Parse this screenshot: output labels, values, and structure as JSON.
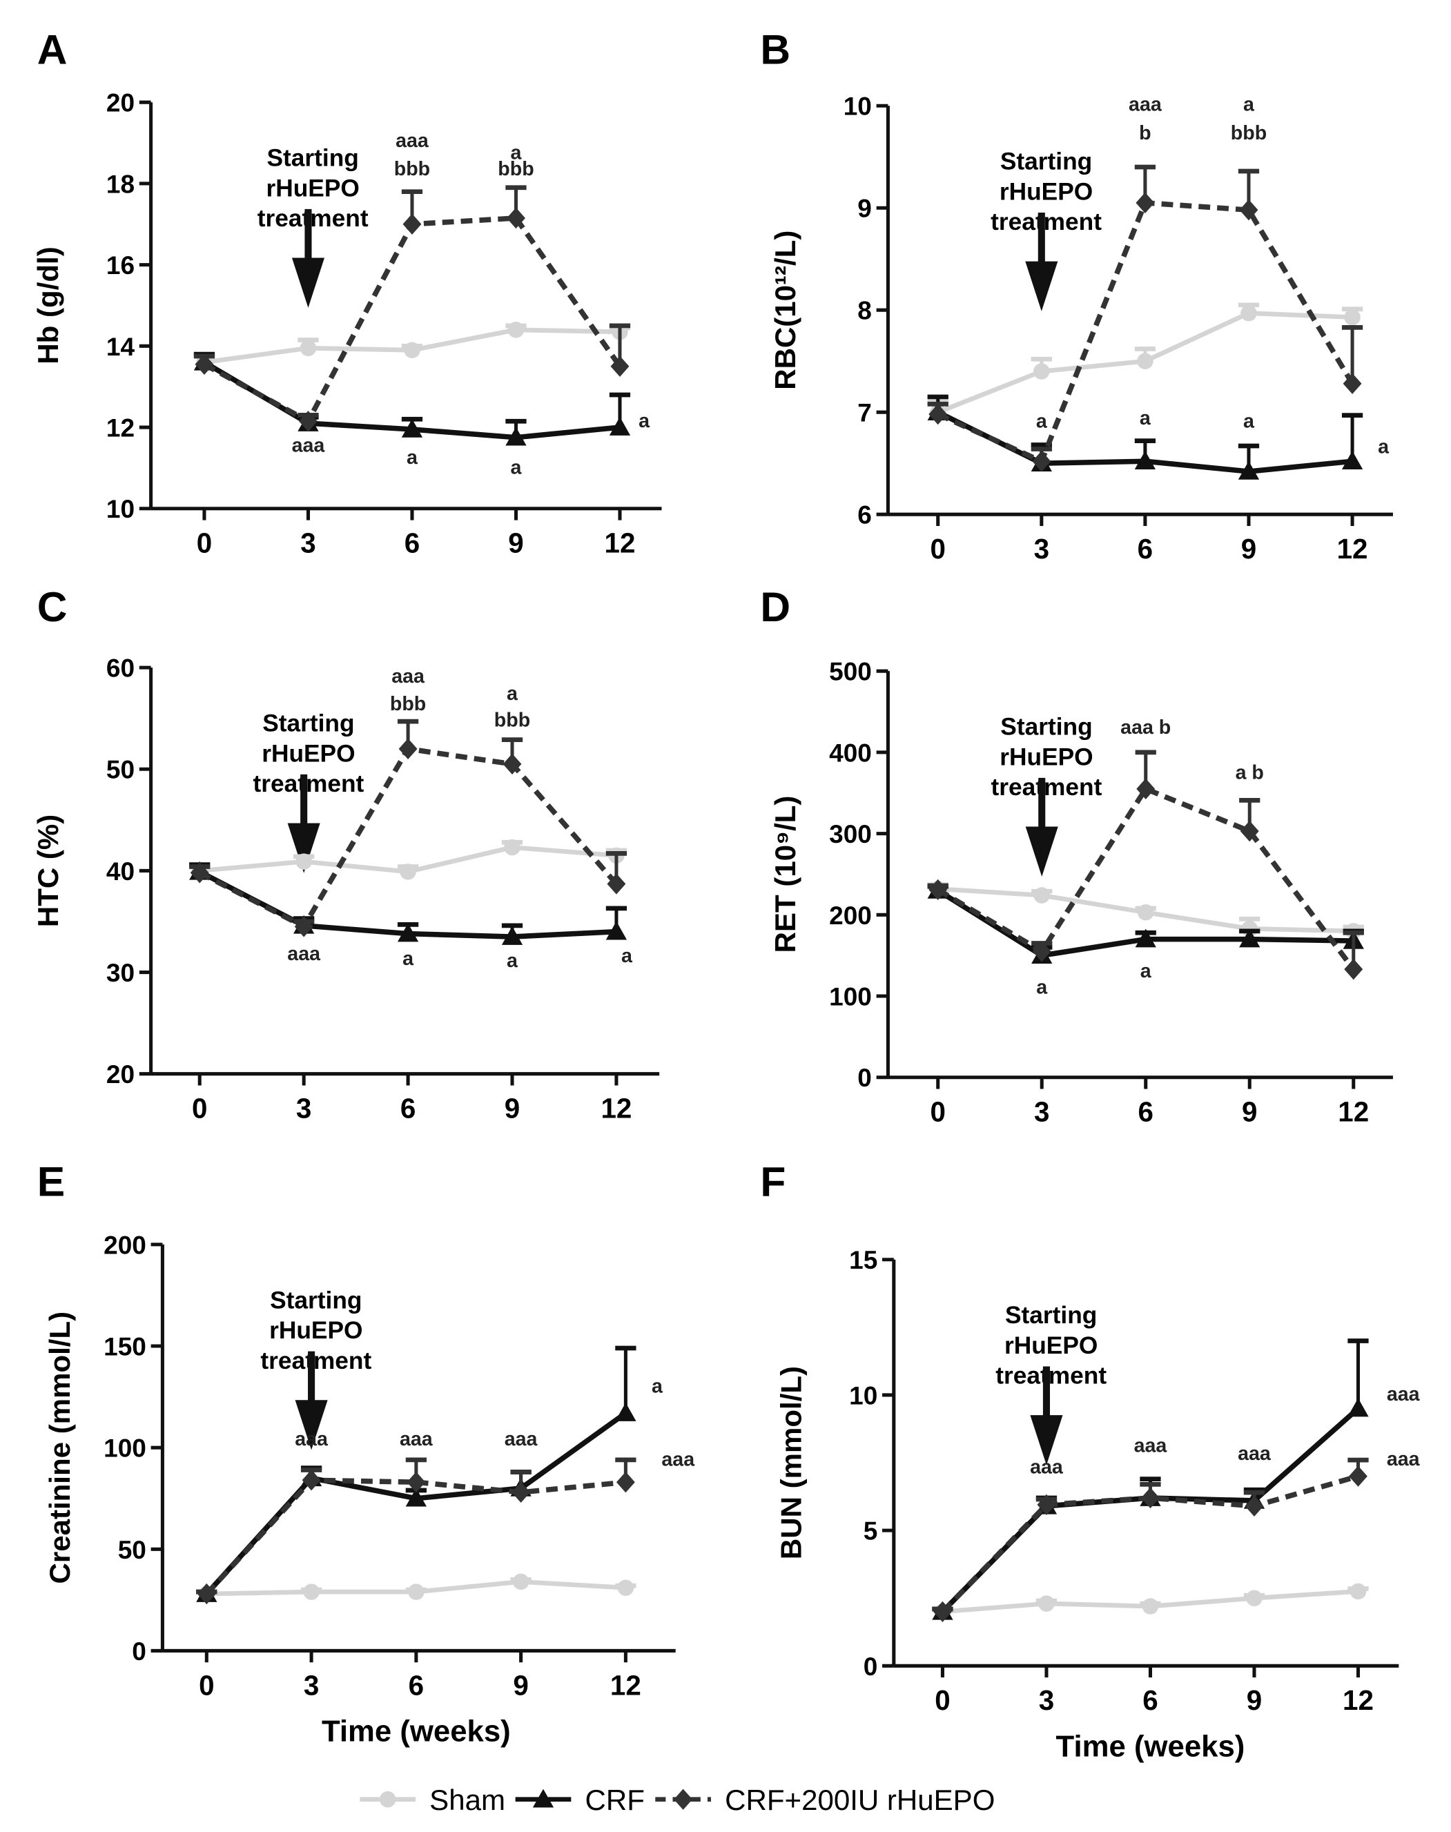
{
  "chart_data": [
    {
      "panel": "A",
      "type": "line",
      "ylabel": "Hb (g/dl)",
      "xlabel": "",
      "ylim": [
        10,
        20
      ],
      "yticks": [
        10,
        12,
        14,
        16,
        18,
        20
      ],
      "x": [
        0,
        3,
        6,
        9,
        12
      ],
      "series": [
        {
          "name": "Sham",
          "values": [
            13.6,
            13.95,
            13.9,
            14.4,
            14.35
          ],
          "err": [
            0.15,
            0.2,
            0.1,
            0.1,
            0.1
          ]
        },
        {
          "name": "CRF",
          "values": [
            13.6,
            12.1,
            11.95,
            11.75,
            12.0
          ],
          "err": [
            0.2,
            0.15,
            0.25,
            0.4,
            0.8
          ]
        },
        {
          "name": "CRF+200IU rHuEPO",
          "values": [
            13.55,
            12.15,
            17.0,
            17.15,
            13.5
          ],
          "err": [
            0.2,
            0.15,
            0.8,
            0.75,
            1.0
          ]
        }
      ],
      "annotation": {
        "lines": [
          "Starting",
          "rHuEPO",
          "treatment"
        ],
        "x": 3
      },
      "significance": [
        {
          "x": 3,
          "y": 11.4,
          "text": "aaa"
        },
        {
          "x": 6,
          "y": 11.1,
          "text": "a"
        },
        {
          "x": 9,
          "y": 10.85,
          "text": "a"
        },
        {
          "x": 12.7,
          "y": 12.0,
          "text": "a"
        },
        {
          "x": 6,
          "y": 18.9,
          "text": "aaa"
        },
        {
          "x": 6,
          "y": 18.2,
          "text": "bbb"
        },
        {
          "x": 9,
          "y": 18.6,
          "text": "a"
        },
        {
          "x": 9,
          "y": 18.2,
          "text": "bbb"
        }
      ]
    },
    {
      "panel": "B",
      "type": "line",
      "ylabel": "RBC(10¹²/L)",
      "xlabel": "",
      "ylim": [
        6,
        10
      ],
      "yticks": [
        6,
        7,
        8,
        9,
        10
      ],
      "x": [
        0,
        3,
        6,
        9,
        12
      ],
      "series": [
        {
          "name": "Sham",
          "values": [
            7.0,
            7.4,
            7.5,
            7.97,
            7.93
          ],
          "err": [
            0.1,
            0.12,
            0.12,
            0.08,
            0.08
          ]
        },
        {
          "name": "CRF",
          "values": [
            7.0,
            6.5,
            6.52,
            6.42,
            6.52
          ],
          "err": [
            0.15,
            0.18,
            0.2,
            0.25,
            0.45
          ]
        },
        {
          "name": "CRF+200IU rHuEPO",
          "values": [
            6.98,
            6.52,
            9.05,
            8.98,
            7.28
          ],
          "err": [
            0.1,
            0.12,
            0.35,
            0.38,
            0.55
          ]
        }
      ],
      "annotation": {
        "lines": [
          "Starting",
          "rHuEPO",
          "treatment"
        ],
        "x": 3
      },
      "significance": [
        {
          "x": 3,
          "y": 6.85,
          "text": "a"
        },
        {
          "x": 6,
          "y": 6.88,
          "text": "a"
        },
        {
          "x": 9,
          "y": 6.85,
          "text": "a"
        },
        {
          "x": 12.9,
          "y": 6.6,
          "text": "a"
        },
        {
          "x": 6,
          "y": 9.95,
          "text": "aaa"
        },
        {
          "x": 6,
          "y": 9.67,
          "text": "b"
        },
        {
          "x": 9,
          "y": 9.95,
          "text": "a"
        },
        {
          "x": 9,
          "y": 9.67,
          "text": "bbb"
        }
      ]
    },
    {
      "panel": "C",
      "type": "line",
      "ylabel": "HTC (%)",
      "xlabel": "",
      "ylim": [
        20,
        60
      ],
      "yticks": [
        20,
        30,
        40,
        50,
        60
      ],
      "x": [
        0,
        3,
        6,
        9,
        12
      ],
      "series": [
        {
          "name": "Sham",
          "values": [
            40.0,
            40.9,
            39.9,
            42.3,
            41.5
          ],
          "err": [
            0.5,
            0.5,
            0.5,
            0.5,
            0.5
          ]
        },
        {
          "name": "CRF",
          "values": [
            39.9,
            34.6,
            33.8,
            33.5,
            34.0
          ],
          "err": [
            0.7,
            0.7,
            0.9,
            1.1,
            2.3
          ]
        },
        {
          "name": "CRF+200IU rHuEPO",
          "values": [
            39.8,
            34.5,
            52.0,
            50.5,
            38.7
          ],
          "err": [
            0.6,
            0.5,
            2.7,
            2.4,
            3.0
          ]
        }
      ],
      "annotation": {
        "lines": [
          "Starting",
          "rHuEPO",
          "treatment"
        ],
        "x": 3
      },
      "significance": [
        {
          "x": 3,
          "y": 31.2,
          "text": "aaa"
        },
        {
          "x": 6,
          "y": 30.7,
          "text": "a"
        },
        {
          "x": 9,
          "y": 30.5,
          "text": "a"
        },
        {
          "x": 12.3,
          "y": 31.0,
          "text": "a"
        },
        {
          "x": 6,
          "y": 58.5,
          "text": "aaa"
        },
        {
          "x": 6,
          "y": 55.8,
          "text": "bbb"
        },
        {
          "x": 9,
          "y": 56.8,
          "text": "a"
        },
        {
          "x": 9,
          "y": 54.2,
          "text": "bbb"
        }
      ]
    },
    {
      "panel": "D",
      "type": "line",
      "ylabel": "RET (10⁹/L)",
      "xlabel": "",
      "ylim": [
        0,
        500
      ],
      "yticks": [
        0,
        100,
        200,
        300,
        400,
        500
      ],
      "x": [
        0,
        3,
        6,
        9,
        12
      ],
      "series": [
        {
          "name": "Sham",
          "values": [
            232,
            224,
            203,
            183,
            180
          ],
          "err": [
            5,
            5,
            5,
            12,
            5
          ]
        },
        {
          "name": "CRF",
          "values": [
            230,
            150,
            170,
            170,
            168
          ],
          "err": [
            5,
            10,
            8,
            10,
            12
          ]
        },
        {
          "name": "CRF+200IU rHuEPO",
          "values": [
            231,
            155,
            355,
            303,
            133
          ],
          "err": [
            5,
            10,
            45,
            38,
            45
          ]
        }
      ],
      "annotation": {
        "lines": [
          "Starting",
          "rHuEPO",
          "treatment"
        ],
        "x": 3
      },
      "significance": [
        {
          "x": 3,
          "y": 103,
          "text": "a"
        },
        {
          "x": 6,
          "y": 123,
          "text": "a"
        },
        {
          "x": 6,
          "y": 423,
          "text": "aaa b"
        },
        {
          "x": 9,
          "y": 367,
          "text": "a b"
        }
      ]
    },
    {
      "panel": "E",
      "type": "line",
      "ylabel": "Creatinine (mmol/L)",
      "xlabel": "Time (weeks)",
      "ylim": [
        0,
        200
      ],
      "yticks": [
        0,
        50,
        100,
        150,
        200
      ],
      "x": [
        0,
        3,
        6,
        9,
        12
      ],
      "series": [
        {
          "name": "Sham",
          "values": [
            28,
            29,
            29,
            34,
            31
          ],
          "err": [
            1,
            1,
            1,
            1,
            1
          ]
        },
        {
          "name": "CRF",
          "values": [
            28,
            85,
            75,
            80,
            117
          ],
          "err": [
            1,
            5,
            4,
            8,
            32
          ]
        },
        {
          "name": "CRF+200IU rHuEPO",
          "values": [
            28,
            84,
            83,
            78,
            83
          ],
          "err": [
            1,
            5,
            11,
            10,
            11
          ]
        }
      ],
      "annotation": {
        "lines": [
          "Starting",
          "rHuEPO",
          "treatment"
        ],
        "x": 3
      },
      "significance": [
        {
          "x": 3,
          "y": 101,
          "text": "aaa"
        },
        {
          "x": 6,
          "y": 101,
          "text": "aaa"
        },
        {
          "x": 9,
          "y": 101,
          "text": "aaa"
        },
        {
          "x": 12.9,
          "y": 127,
          "text": "a"
        },
        {
          "x": 13.5,
          "y": 91,
          "text": "aaa"
        }
      ]
    },
    {
      "panel": "F",
      "type": "line",
      "ylabel": "BUN (mmol/L)",
      "xlabel": "Time (weeks)",
      "ylim": [
        0,
        15
      ],
      "yticks": [
        0,
        5,
        10,
        15
      ],
      "x": [
        0,
        3,
        6,
        9,
        12
      ],
      "series": [
        {
          "name": "Sham",
          "values": [
            2.0,
            2.3,
            2.2,
            2.5,
            2.75
          ],
          "err": [
            0.1,
            0.1,
            0.1,
            0.1,
            0.1
          ]
        },
        {
          "name": "CRF",
          "values": [
            2.0,
            5.9,
            6.2,
            6.1,
            9.5
          ],
          "err": [
            0.1,
            0.3,
            0.7,
            0.4,
            2.5
          ]
        },
        {
          "name": "CRF+200IU rHuEPO",
          "values": [
            2.0,
            5.95,
            6.2,
            5.9,
            7.0
          ],
          "err": [
            0.1,
            0.2,
            0.5,
            0.5,
            0.6
          ]
        }
      ],
      "annotation": {
        "lines": [
          "Starting",
          "rHuEPO",
          "treatment"
        ],
        "x": 3
      },
      "significance": [
        {
          "x": 3,
          "y": 7.1,
          "text": "aaa"
        },
        {
          "x": 6,
          "y": 7.9,
          "text": "aaa"
        },
        {
          "x": 9,
          "y": 7.6,
          "text": "aaa"
        },
        {
          "x": 13.3,
          "y": 9.8,
          "text": "aaa"
        },
        {
          "x": 13.3,
          "y": 7.4,
          "text": "aaa"
        }
      ]
    }
  ],
  "legend": [
    {
      "name": "Sham",
      "color": "#d4d4d4"
    },
    {
      "name": "CRF",
      "color": "#111111"
    },
    {
      "name": "CRF+200IU rHuEPO",
      "color": "#333333"
    }
  ],
  "colors": {
    "sham": "#d4d4d4",
    "crf": "#111111",
    "epo": "#333333"
  }
}
